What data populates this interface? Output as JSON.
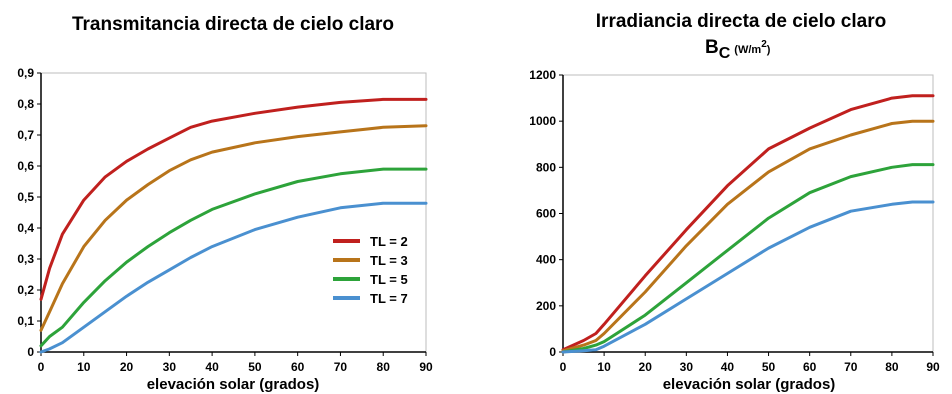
{
  "chart_data": [
    {
      "type": "line",
      "title": "Transmitancia directa de cielo claro",
      "xlabel": "elevación solar (grados)",
      "ylabel": "",
      "xlim": [
        0,
        90
      ],
      "ylim": [
        0,
        0.9
      ],
      "xticks": [
        0,
        10,
        20,
        30,
        40,
        50,
        60,
        70,
        80,
        90
      ],
      "yticks": [
        0,
        0.1,
        0.2,
        0.3,
        0.4,
        0.5,
        0.6,
        0.7,
        0.8,
        0.9
      ],
      "ytick_labels": [
        "0",
        "0,1",
        "0,2",
        "0,3",
        "0,4",
        "0,5",
        "0,6",
        "0,7",
        "0,8",
        "0,9"
      ],
      "grid": false,
      "legend_position": "right",
      "series": [
        {
          "name": "TL = 2",
          "color": "#c0201e",
          "x": [
            0,
            2,
            5,
            10,
            15,
            20,
            25,
            30,
            35,
            40,
            50,
            60,
            70,
            80,
            90
          ],
          "y": [
            0.17,
            0.27,
            0.38,
            0.49,
            0.565,
            0.615,
            0.655,
            0.69,
            0.725,
            0.745,
            0.77,
            0.79,
            0.805,
            0.815,
            0.815
          ]
        },
        {
          "name": "TL = 3",
          "color": "#b8741a",
          "x": [
            0,
            2,
            5,
            10,
            15,
            20,
            25,
            30,
            35,
            40,
            50,
            60,
            70,
            80,
            90
          ],
          "y": [
            0.07,
            0.13,
            0.22,
            0.34,
            0.425,
            0.49,
            0.54,
            0.585,
            0.62,
            0.645,
            0.675,
            0.695,
            0.71,
            0.725,
            0.73
          ]
        },
        {
          "name": "TL = 5",
          "color": "#2da33a",
          "x": [
            0,
            2,
            5,
            10,
            15,
            20,
            25,
            30,
            35,
            40,
            50,
            60,
            70,
            80,
            90
          ],
          "y": [
            0.02,
            0.05,
            0.08,
            0.16,
            0.23,
            0.29,
            0.34,
            0.385,
            0.425,
            0.46,
            0.51,
            0.55,
            0.575,
            0.59,
            0.59
          ]
        },
        {
          "name": "TL = 7",
          "color": "#4a90d0",
          "x": [
            0,
            2,
            5,
            10,
            15,
            20,
            25,
            30,
            35,
            40,
            50,
            60,
            70,
            80,
            90
          ],
          "y": [
            0.0,
            0.01,
            0.03,
            0.08,
            0.13,
            0.18,
            0.225,
            0.265,
            0.305,
            0.34,
            0.395,
            0.435,
            0.465,
            0.48,
            0.48
          ]
        }
      ]
    },
    {
      "type": "line",
      "title": "Irradiancia directa de cielo claro",
      "subtitle": "B",
      "subtitle_subscript": "C",
      "subtitle_unit": "(W/m",
      "subtitle_unit_sup": "2",
      "subtitle_unit_close": ")",
      "xlabel": "elevación solar (grados)",
      "ylabel": "",
      "xlim": [
        0,
        90
      ],
      "ylim": [
        0,
        1200
      ],
      "xticks": [
        0,
        10,
        20,
        30,
        40,
        50,
        60,
        70,
        80,
        90
      ],
      "yticks": [
        0,
        200,
        400,
        600,
        800,
        1000,
        1200
      ],
      "ytick_labels": [
        "0",
        "200",
        "400",
        "600",
        "800",
        "1000",
        "1200"
      ],
      "grid": false,
      "series": [
        {
          "name": "TL = 2",
          "color": "#c0201e",
          "x": [
            0,
            5,
            8,
            10,
            20,
            30,
            40,
            50,
            60,
            70,
            80,
            85,
            90
          ],
          "y": [
            10,
            50,
            80,
            120,
            330,
            530,
            720,
            880,
            970,
            1050,
            1100,
            1110,
            1110
          ]
        },
        {
          "name": "TL = 3",
          "color": "#b8741a",
          "x": [
            0,
            5,
            8,
            10,
            20,
            30,
            40,
            50,
            60,
            70,
            80,
            85,
            90
          ],
          "y": [
            5,
            30,
            50,
            80,
            260,
            460,
            640,
            780,
            880,
            940,
            990,
            1000,
            1000
          ]
        },
        {
          "name": "TL = 5",
          "color": "#2da33a",
          "x": [
            0,
            5,
            8,
            10,
            20,
            30,
            40,
            50,
            60,
            70,
            80,
            85,
            90
          ],
          "y": [
            0,
            15,
            30,
            45,
            160,
            300,
            440,
            580,
            690,
            760,
            800,
            812,
            812
          ]
        },
        {
          "name": "TL = 7",
          "color": "#4a90d0",
          "x": [
            0,
            5,
            8,
            10,
            20,
            30,
            40,
            50,
            60,
            70,
            80,
            85,
            90
          ],
          "y": [
            0,
            5,
            10,
            25,
            120,
            230,
            340,
            450,
            540,
            610,
            640,
            650,
            650
          ]
        }
      ]
    }
  ]
}
